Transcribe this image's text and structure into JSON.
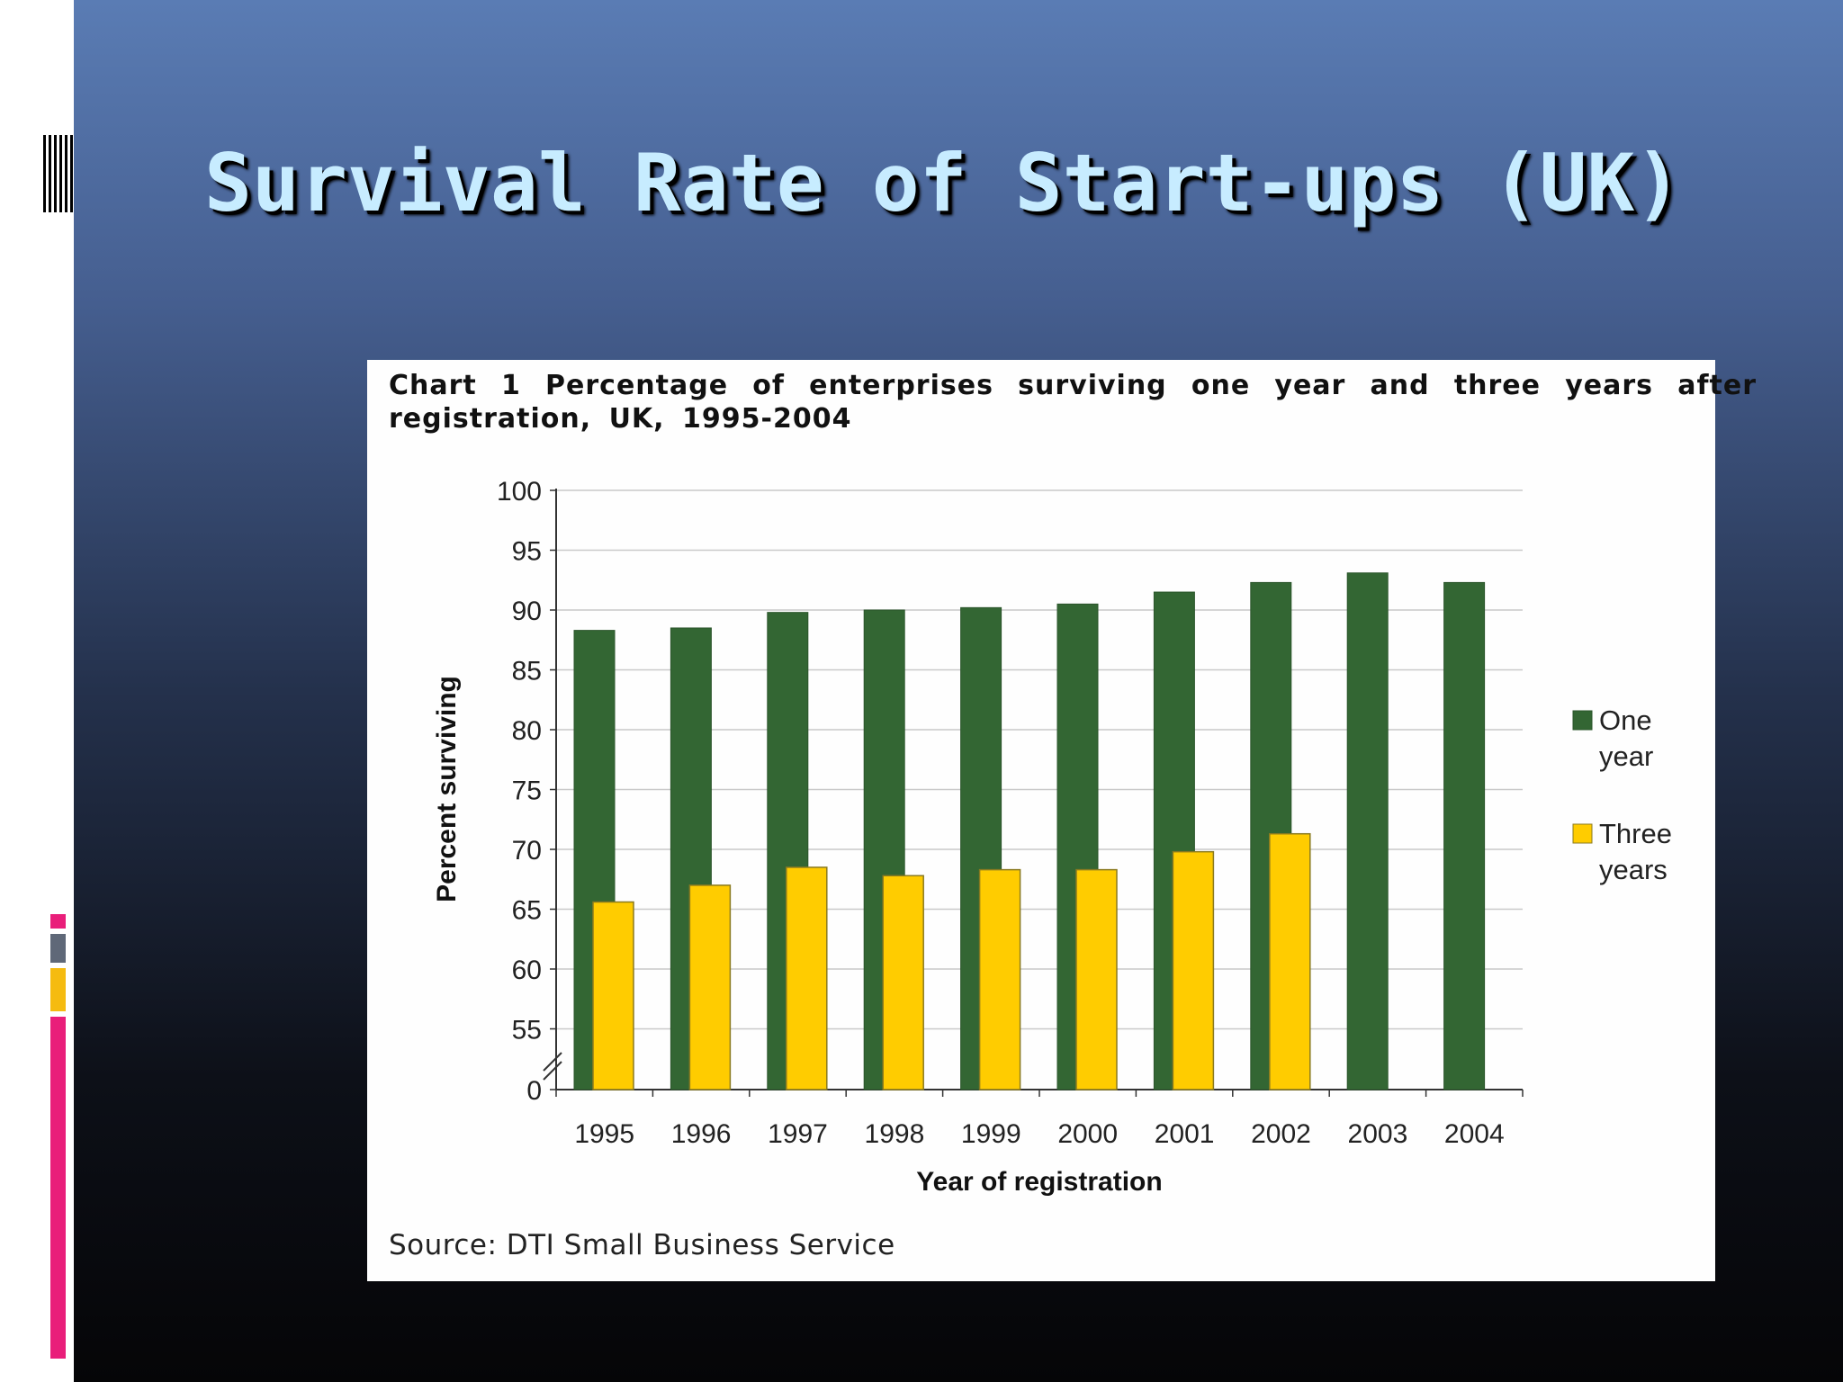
{
  "slide": {
    "title": "Survival Rate of Start-ups (UK)"
  },
  "chart_panel": {
    "caption": "Chart 1  Percentage of enterprises surviving one year and three years after registration, UK, 1995-2004",
    "source": "Source: DTI Small Business Service"
  },
  "colors": {
    "one_year": "#336633",
    "three_years": "#ffcc00",
    "title_text": "#c7ecff",
    "accent_pink": "#e91e7a",
    "accent_gray": "#5f6878",
    "accent_yellow": "#f5bb10"
  },
  "chart_data": {
    "type": "bar",
    "title": "Chart 1  Percentage of enterprises surviving one year and three years after registration, UK, 1995-2004",
    "xlabel": "Year of registration",
    "ylabel": "Percent surviving",
    "categories": [
      "1995",
      "1996",
      "1997",
      "1998",
      "1999",
      "2000",
      "2001",
      "2002",
      "2003",
      "2004"
    ],
    "y_ticks": [
      "0",
      "55",
      "60",
      "65",
      "70",
      "75",
      "80",
      "85",
      "90",
      "95",
      "100"
    ],
    "y_axis_break": "0 to 50 omitted",
    "ylim": [
      50,
      100
    ],
    "grid": true,
    "legend_position": "right",
    "series": [
      {
        "name": "One year",
        "legend_lines": [
          "One",
          "year"
        ],
        "color": "#336633",
        "values": [
          88.3,
          88.5,
          89.8,
          90.0,
          90.2,
          90.5,
          91.5,
          92.3,
          93.1,
          92.3
        ]
      },
      {
        "name": "Three years",
        "legend_lines": [
          "Three",
          "years"
        ],
        "color": "#ffcc00",
        "values": [
          65.6,
          67.0,
          68.5,
          67.8,
          68.3,
          68.3,
          69.8,
          71.3,
          null,
          null
        ]
      }
    ]
  }
}
